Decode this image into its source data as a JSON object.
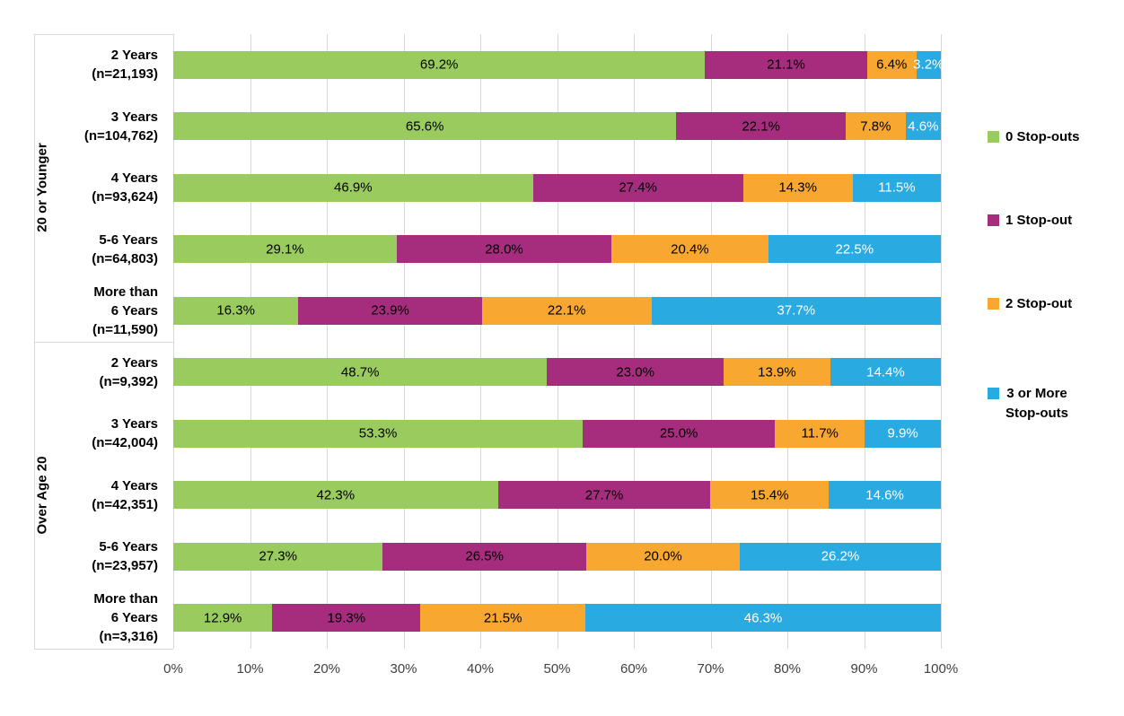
{
  "chart_data": {
    "type": "bar",
    "orientation": "horizontal",
    "stacked": true,
    "title": "",
    "xlabel": "",
    "ylabel": "",
    "x_axis": {
      "min": 0,
      "max": 100,
      "gridlines": true,
      "ticks": [
        "0%",
        "10%",
        "20%",
        "30%",
        "40%",
        "50%",
        "60%",
        "70%",
        "80%",
        "90%",
        "100%"
      ]
    },
    "series": [
      {
        "name": "0 Stop-outs",
        "color": "#9ACB5E",
        "label_color": "#000000"
      },
      {
        "name": "1 Stop-out",
        "color": "#A62C7E",
        "label_color": "#000000"
      },
      {
        "name": "2 Stop-out",
        "color": "#F8A731",
        "label_color": "#000000"
      },
      {
        "name": "3 or More Stop-outs",
        "color": "#29ABE2",
        "label_color": "#FFFFFF"
      }
    ],
    "legend": {
      "position": "right",
      "items": [
        {
          "lines": [
            "0 Stop-outs"
          ]
        },
        {
          "lines": [
            "1 Stop-out"
          ]
        },
        {
          "lines": [
            "2 Stop-out"
          ]
        },
        {
          "lines": [
            "3 or More",
            "Stop-outs"
          ]
        }
      ]
    },
    "groups": [
      {
        "label": "20 or Younger",
        "rows": [
          {
            "label_lines": [
              "2 Years",
              "(n=21,193)"
            ],
            "values": [
              69.2,
              21.1,
              6.4,
              3.2
            ],
            "display": [
              "69.2%",
              "21.1%",
              "6.4%",
              "3.2%"
            ]
          },
          {
            "label_lines": [
              "3 Years",
              "(n=104,762)"
            ],
            "values": [
              65.6,
              22.1,
              7.8,
              4.6
            ],
            "display": [
              "65.6%",
              "22.1%",
              "7.8%",
              "4.6%"
            ]
          },
          {
            "label_lines": [
              "4 Years",
              "(n=93,624)"
            ],
            "values": [
              46.9,
              27.4,
              14.3,
              11.5
            ],
            "display": [
              "46.9%",
              "27.4%",
              "14.3%",
              "11.5%"
            ]
          },
          {
            "label_lines": [
              "5-6 Years",
              "(n=64,803)"
            ],
            "values": [
              29.1,
              28.0,
              20.4,
              22.5
            ],
            "display": [
              "29.1%",
              "28.0%",
              "20.4%",
              "22.5%"
            ]
          },
          {
            "label_lines": [
              "More than",
              "6 Years",
              "(n=11,590)"
            ],
            "values": [
              16.3,
              23.9,
              22.1,
              37.7
            ],
            "display": [
              "16.3%",
              "23.9%",
              "22.1%",
              "37.7%"
            ]
          }
        ]
      },
      {
        "label": "Over Age 20",
        "rows": [
          {
            "label_lines": [
              "2 Years",
              "(n=9,392)"
            ],
            "values": [
              48.7,
              23.0,
              13.9,
              14.4
            ],
            "display": [
              "48.7%",
              "23.0%",
              "13.9%",
              "14.4%"
            ]
          },
          {
            "label_lines": [
              "3 Years",
              "(n=42,004)"
            ],
            "values": [
              53.3,
              25.0,
              11.7,
              9.9
            ],
            "display": [
              "53.3%",
              "25.0%",
              "11.7%",
              "9.9%"
            ]
          },
          {
            "label_lines": [
              "4 Years",
              "(n=42,351)"
            ],
            "values": [
              42.3,
              27.7,
              15.4,
              14.6
            ],
            "display": [
              "42.3%",
              "27.7%",
              "15.4%",
              "14.6%"
            ]
          },
          {
            "label_lines": [
              "5-6 Years",
              "(n=23,957)"
            ],
            "values": [
              27.3,
              26.5,
              20.0,
              26.2
            ],
            "display": [
              "27.3%",
              "26.5%",
              "20.0%",
              "26.2%"
            ]
          },
          {
            "label_lines": [
              "More than",
              "6 Years",
              "(n=3,316)"
            ],
            "values": [
              12.9,
              19.3,
              21.5,
              46.3
            ],
            "display": [
              "12.9%",
              "19.3%",
              "21.5%",
              "46.3%"
            ]
          }
        ]
      }
    ],
    "colors": {
      "gridline": "#d9d9d9",
      "axis_text": "#404040",
      "label_text": "#000000"
    }
  }
}
